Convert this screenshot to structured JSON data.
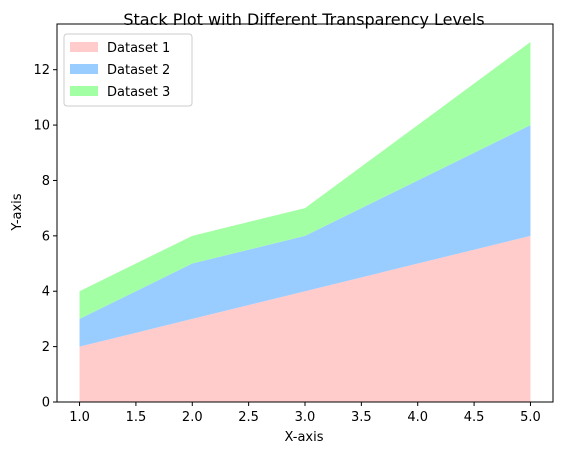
{
  "chart_data": {
    "type": "area",
    "stacked": true,
    "title": "Stack Plot with Different Transparency Levels",
    "xlabel": "X-axis",
    "ylabel": "Y-axis",
    "x": [
      1,
      2,
      3,
      4,
      5
    ],
    "series": [
      {
        "name": "Dataset 1",
        "values": [
          2,
          3,
          4,
          5,
          6
        ],
        "color": "#ffcccb"
      },
      {
        "name": "Dataset 2",
        "values": [
          1,
          2,
          2,
          3,
          4
        ],
        "color": "#99ccff"
      },
      {
        "name": "Dataset 3",
        "values": [
          1,
          1,
          1,
          2,
          3
        ],
        "color": "#a3ffa3"
      }
    ],
    "xlim": [
      0.8,
      5.2
    ],
    "ylim": [
      0,
      13.65
    ],
    "xticks": [
      "1.0",
      "1.5",
      "2.0",
      "2.5",
      "3.0",
      "3.5",
      "4.0",
      "4.5",
      "5.0"
    ],
    "yticks": [
      "0",
      "2",
      "4",
      "6",
      "8",
      "10",
      "12"
    ],
    "grid": false,
    "legend_position": "top-left"
  }
}
